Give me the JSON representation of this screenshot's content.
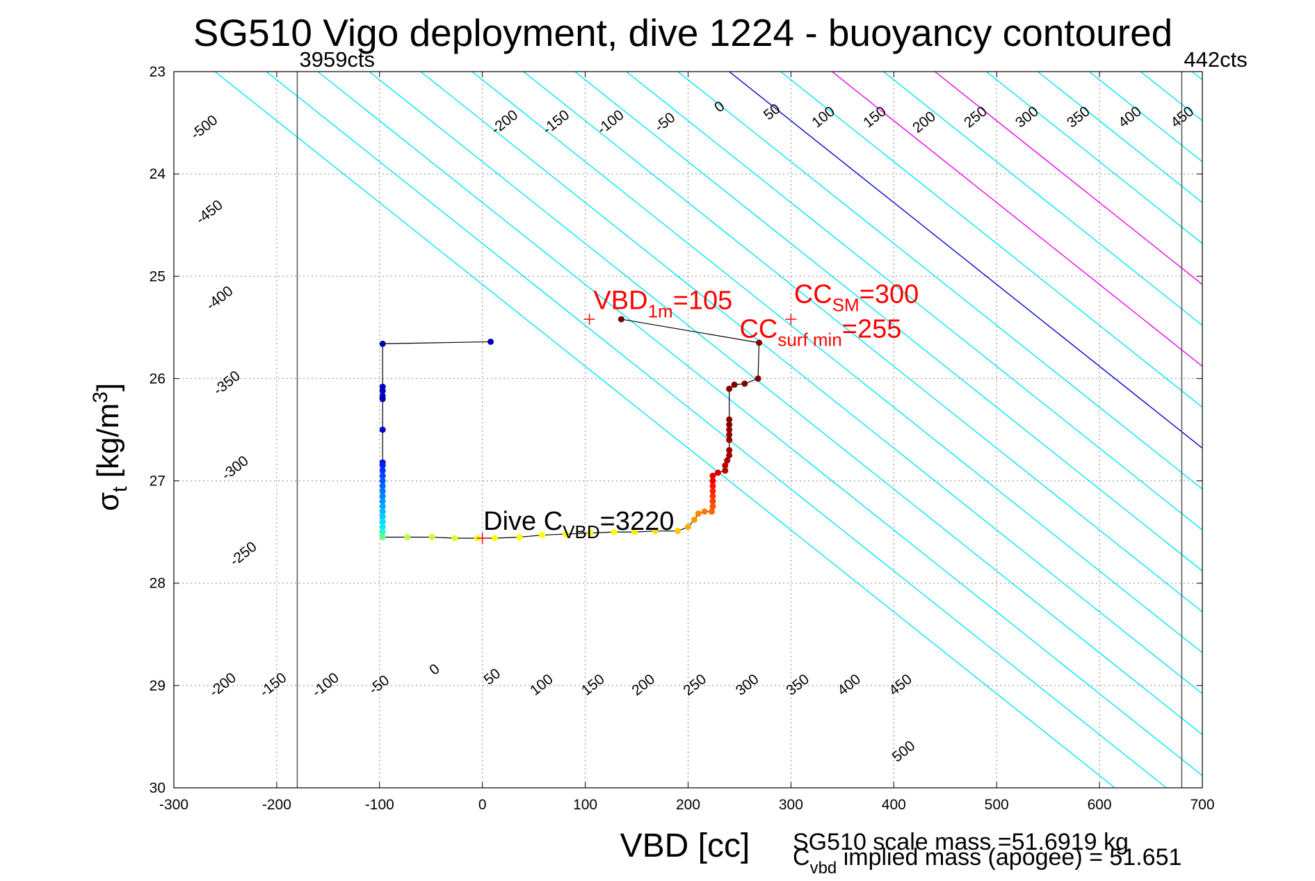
{
  "chart_data": {
    "type": "line",
    "title": "SG510 Vigo deployment, dive 1224 - buoyancy contoured",
    "xlabel": "VBD [cc]",
    "ylabel_main": "σ",
    "ylabel_sub": "t",
    "ylabel_unit": " [kg/m",
    "ylabel_sup": "3",
    "ylabel_close": "]",
    "xlim": [
      -300,
      700
    ],
    "ylim": [
      23,
      30
    ],
    "y_reversed": true,
    "grid": true,
    "x_ticks": [
      -300,
      -200,
      -100,
      0,
      100,
      200,
      300,
      400,
      500,
      600,
      700
    ],
    "y_ticks": [
      23,
      24,
      25,
      26,
      27,
      28,
      29,
      30
    ],
    "contour_slope_cc_per_sigma": 125,
    "contour_levels": [
      -500,
      -450,
      -400,
      -350,
      -300,
      -250,
      -200,
      -150,
      -100,
      -50,
      0,
      50,
      100,
      150,
      200,
      250,
      300,
      350,
      400,
      450,
      500,
      550,
      600,
      650
    ],
    "zero_contour_x_at_sigma23": 240,
    "colors": {
      "contour": "#00e5ee",
      "zero_contour": "#0000cc",
      "highlight_contour": "#ee00ee",
      "limit_line": "#555555",
      "grid": "#888888",
      "annotation": "#ff0000",
      "path": "#000000"
    },
    "highlight_contour_levels": [
      100,
      200
    ],
    "contour_labels_top": [
      {
        "level": -500,
        "x": -270,
        "y": 23.55
      },
      {
        "level": -200,
        "x": 22,
        "y": 23.5
      },
      {
        "level": -150,
        "x": 72,
        "y": 23.5
      },
      {
        "level": -100,
        "x": 125,
        "y": 23.5
      },
      {
        "level": -50,
        "x": 178,
        "y": 23.5
      },
      {
        "level": 0,
        "x": 231,
        "y": 23.35
      },
      {
        "level": 50,
        "x": 282,
        "y": 23.4
      },
      {
        "level": 100,
        "x": 332,
        "y": 23.45
      },
      {
        "level": 150,
        "x": 382,
        "y": 23.45
      },
      {
        "level": 200,
        "x": 430,
        "y": 23.5
      },
      {
        "level": 250,
        "x": 480,
        "y": 23.45
      },
      {
        "level": 300,
        "x": 530,
        "y": 23.45
      },
      {
        "level": 350,
        "x": 580,
        "y": 23.45
      },
      {
        "level": 400,
        "x": 630,
        "y": 23.45
      },
      {
        "level": 450,
        "x": 681,
        "y": 23.45
      }
    ],
    "contour_labels_side": [
      {
        "level": -450,
        "x": -265,
        "y": 24.38
      },
      {
        "level": -400,
        "x": -255,
        "y": 25.22
      },
      {
        "level": -350,
        "x": -248,
        "y": 26.05
      },
      {
        "level": -300,
        "x": -240,
        "y": 26.88
      },
      {
        "level": -250,
        "x": -232,
        "y": 27.72
      }
    ],
    "contour_labels_bottom": [
      {
        "level": -200,
        "x": -252,
        "y": 29.0
      },
      {
        "level": -150,
        "x": -203,
        "y": 29.0
      },
      {
        "level": -100,
        "x": -152,
        "y": 29.0
      },
      {
        "level": -50,
        "x": -100,
        "y": 29.0
      },
      {
        "level": 0,
        "x": -46,
        "y": 28.85
      },
      {
        "level": 50,
        "x": 10,
        "y": 28.92
      },
      {
        "level": 100,
        "x": 58,
        "y": 29.0
      },
      {
        "level": 150,
        "x": 108,
        "y": 29.0
      },
      {
        "level": 200,
        "x": 157,
        "y": 29.0
      },
      {
        "level": 250,
        "x": 207,
        "y": 29.0
      },
      {
        "level": 300,
        "x": 258,
        "y": 29.0
      },
      {
        "level": 350,
        "x": 307,
        "y": 29.0
      },
      {
        "level": 400,
        "x": 357,
        "y": 29.0
      },
      {
        "level": 450,
        "x": 407,
        "y": 29.0
      },
      {
        "level": 500,
        "x": 410,
        "y": 29.65
      }
    ],
    "limit_lines": [
      {
        "x": -180,
        "label": "3959cts"
      },
      {
        "x": 680,
        "label": "442cts"
      }
    ],
    "series": [
      {
        "points": [
          [
            8,
            25.64
          ],
          [
            -97,
            25.66
          ],
          [
            -97,
            26.08
          ],
          [
            -97,
            26.12
          ],
          [
            -97,
            26.17
          ],
          [
            -97,
            26.2
          ],
          [
            -97,
            26.5
          ],
          [
            -97,
            26.82
          ],
          [
            -97,
            26.85
          ],
          [
            -97,
            26.9
          ],
          [
            -97,
            26.95
          ],
          [
            -97,
            27.0
          ],
          [
            -97,
            27.05
          ],
          [
            -97,
            27.1
          ],
          [
            -97,
            27.15
          ],
          [
            -97,
            27.2
          ],
          [
            -97,
            27.25
          ],
          [
            -97,
            27.3
          ],
          [
            -97,
            27.35
          ],
          [
            -97,
            27.4
          ],
          [
            -97,
            27.45
          ],
          [
            -97,
            27.5
          ],
          [
            -97,
            27.55
          ],
          [
            -73,
            27.55
          ],
          [
            -49,
            27.55
          ],
          [
            -27,
            27.56
          ],
          [
            -5,
            27.56
          ],
          [
            12,
            27.56
          ],
          [
            36,
            27.55
          ],
          [
            58,
            27.53
          ],
          [
            81,
            27.52
          ],
          [
            105,
            27.51
          ],
          [
            128,
            27.5
          ],
          [
            148,
            27.5
          ],
          [
            168,
            27.49
          ],
          [
            190,
            27.49
          ],
          [
            200,
            27.45
          ],
          [
            206,
            27.38
          ],
          [
            210,
            27.32
          ],
          [
            216,
            27.3
          ],
          [
            223,
            27.3
          ],
          [
            224,
            27.25
          ],
          [
            224,
            27.2
          ],
          [
            224,
            27.15
          ],
          [
            224,
            27.1
          ],
          [
            224,
            27.05
          ],
          [
            224,
            27.0
          ],
          [
            224,
            26.95
          ],
          [
            229,
            26.92
          ],
          [
            236,
            26.9
          ],
          [
            236,
            26.85
          ],
          [
            238,
            26.8
          ],
          [
            240,
            26.75
          ],
          [
            240,
            26.7
          ],
          [
            240,
            26.6
          ],
          [
            240,
            26.55
          ],
          [
            240,
            26.5
          ],
          [
            240,
            26.45
          ],
          [
            240,
            26.4
          ],
          [
            240,
            26.1
          ],
          [
            245,
            26.06
          ],
          [
            255,
            26.05
          ],
          [
            268,
            26.0
          ],
          [
            269,
            25.65
          ],
          [
            135,
            25.42
          ]
        ],
        "colors": [
          "#0000aa",
          "#0000aa",
          "#0000bb",
          "#0000bb",
          "#0000bb",
          "#0000bb",
          "#0000cc",
          "#0011dd",
          "#0022ee",
          "#0033ff",
          "#0044ff",
          "#0055ff",
          "#0066ff",
          "#0077ff",
          "#0088ff",
          "#0099ff",
          "#00aaff",
          "#00bbff",
          "#00ccff",
          "#00ddff",
          "#00eeee",
          "#22ffcc",
          "#66ff88",
          "#bbff44",
          "#ccff33",
          "#ddff22",
          "#eeff11",
          "#ffff00",
          "#ffff00",
          "#ffff00",
          "#ffff00",
          "#ffff00",
          "#ffff00",
          "#ffee00",
          "#ffdd00",
          "#ffcc00",
          "#ffaa00",
          "#ff9900",
          "#ff8800",
          "#ff7700",
          "#ff6600",
          "#ff5500",
          "#ff4400",
          "#ff3300",
          "#ff2200",
          "#ff1100",
          "#ee0000",
          "#dd0000",
          "#cc0000",
          "#bb0000",
          "#bb0000",
          "#aa0000",
          "#aa0000",
          "#990000",
          "#990000",
          "#990000",
          "#990000",
          "#880000",
          "#880000",
          "#880000",
          "#800000",
          "#800000",
          "#800000",
          "#800000",
          "#700000"
        ]
      }
    ],
    "markers": [
      {
        "x": 104,
        "y": 25.42,
        "color": "#ff0000"
      },
      {
        "x": 300,
        "y": 25.42,
        "color": "#ff0000"
      },
      {
        "x": 0,
        "y": 27.56,
        "color": "#ff0000"
      }
    ],
    "annotations": [
      {
        "id": "vbd1m",
        "color": "#ff0000",
        "x": 108,
        "y": 25.32,
        "main": "VBD",
        "sub": "1m",
        "rest": "=105"
      },
      {
        "id": "ccsm",
        "color": "#ff0000",
        "x": 303,
        "y": 25.26,
        "main": "CC",
        "sub": "SM",
        "rest": "=300"
      },
      {
        "id": "ccsurf",
        "color": "#ff0000",
        "x": 250,
        "y": 25.6,
        "main": "CC",
        "sub": "surf min",
        "rest": "=255"
      },
      {
        "id": "divecvbd",
        "color": "#000000",
        "x": 1,
        "y": 27.48,
        "main": "Dive C",
        "sub": "VBD",
        "rest": "=3220"
      }
    ],
    "footer_line1": "SG510 scale mass =51.6919 kg",
    "footer_line2_main": "C",
    "footer_line2_sub": "vbd",
    "footer_line2_rest": " implied mass (apogee) = 51.651"
  }
}
